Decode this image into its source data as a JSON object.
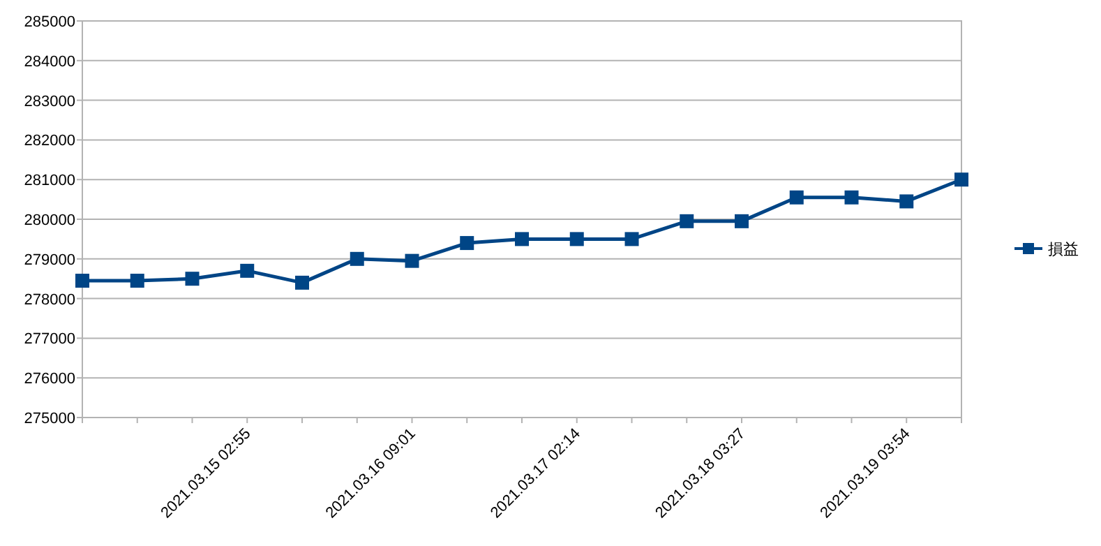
{
  "chart_data": {
    "type": "line",
    "categories": [
      null,
      null,
      null,
      "2021.03.15 02:55",
      null,
      null,
      "2021.03.16 09:01",
      null,
      null,
      "2021.03.17 02:14",
      null,
      null,
      "2021.03.18 03:27",
      null,
      null,
      "2021.03.19 03:54",
      null
    ],
    "series": [
      {
        "name": "損益",
        "color": "#004586",
        "values": [
          278450,
          278450,
          278500,
          278700,
          278400,
          279000,
          278950,
          279400,
          279500,
          279500,
          279500,
          279950,
          279950,
          280550,
          280550,
          280450,
          281000
        ]
      }
    ],
    "ylim": [
      275000,
      285000
    ],
    "yticks": [
      275000,
      276000,
      277000,
      278000,
      279000,
      280000,
      281000,
      282000,
      283000,
      284000,
      285000
    ],
    "grid": "y",
    "legend": "right",
    "marker": "square",
    "line_style": "solid"
  }
}
